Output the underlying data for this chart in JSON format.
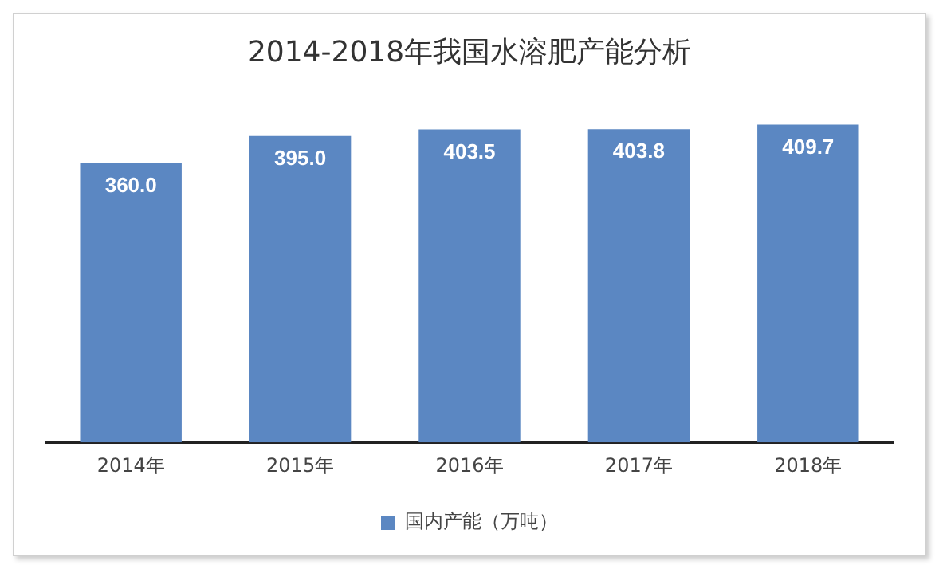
{
  "chart_data": {
    "type": "bar",
    "title": "2014-2018年我国水溶肥产能分析",
    "categories": [
      "2014年",
      "2015年",
      "2016年",
      "2017年",
      "2018年"
    ],
    "series": [
      {
        "name": "国内产能（万吨）",
        "color": "#5b87c2",
        "values": [
          360.0,
          395.0,
          403.5,
          403.8,
          409.7
        ],
        "value_labels": [
          "360.0",
          "395.0",
          "403.5",
          "403.8",
          "409.7"
        ]
      }
    ],
    "tick_labels": "x",
    "grid": false,
    "legend": "bottom"
  }
}
